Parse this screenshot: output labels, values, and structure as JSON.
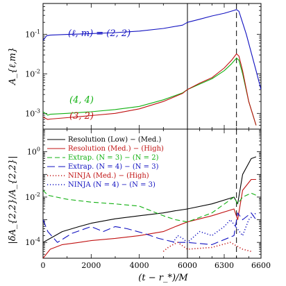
{
  "chart_data": [
    {
      "type": "line",
      "panel": "top",
      "ylabel": "A_{ℓ,m}",
      "y_scale": "log",
      "ylim": [
        0.0004,
        0.6
      ],
      "xlim": [
        0,
        6600
      ],
      "x_axis_break": {
        "from": 6000,
        "to": 6600,
        "labels": [
          "6000",
          "6300",
          "6600"
        ]
      },
      "y_tick_labels": [
        "10^-1",
        "10^-2",
        "10^-3"
      ],
      "grid": false,
      "vertical_lines": [
        {
          "x": 6000,
          "style": "solid"
        },
        {
          "x": 6400,
          "style": "dashed"
        }
      ],
      "series": [
        {
          "name": "(ℓ, m) = (2, 2)",
          "color": "#1010c0",
          "x": [
            0,
            150,
            300,
            1000,
            2000,
            3000,
            4000,
            5000,
            5800,
            6000,
            6100,
            6200,
            6300,
            6380,
            6400,
            6420,
            6480,
            6560,
            6600
          ],
          "values": [
            0.07,
            0.092,
            0.095,
            0.099,
            0.104,
            0.11,
            0.12,
            0.14,
            0.17,
            0.2,
            0.24,
            0.29,
            0.34,
            0.4,
            0.42,
            0.38,
            0.1,
            0.012,
            0.004
          ]
        },
        {
          "name": "(4, 4)",
          "color": "#10b010",
          "x": [
            0,
            200,
            300,
            1000,
            2000,
            3000,
            4000,
            5000,
            5800,
            6000,
            6100,
            6200,
            6300,
            6360,
            6400,
            6420,
            6450,
            6500,
            6560
          ],
          "values": [
            0.0011,
            0.0009,
            0.00095,
            0.001,
            0.0011,
            0.00125,
            0.0015,
            0.0022,
            0.0033,
            0.004,
            0.0055,
            0.0075,
            0.012,
            0.018,
            0.025,
            0.022,
            0.01,
            0.002,
            0.0005
          ]
        },
        {
          "name": "(3, 2)",
          "color": "#c01010",
          "x": [
            0,
            200,
            300,
            1000,
            2000,
            3000,
            4000,
            5000,
            5800,
            6000,
            6100,
            6200,
            6300,
            6360,
            6400,
            6420,
            6450,
            6500,
            6560
          ],
          "values": [
            0.0008,
            0.0007,
            0.00072,
            0.00078,
            0.00088,
            0.001,
            0.0013,
            0.002,
            0.0032,
            0.004,
            0.0058,
            0.008,
            0.014,
            0.022,
            0.032,
            0.028,
            0.012,
            0.002,
            0.0005
          ]
        }
      ]
    },
    {
      "type": "line",
      "panel": "bottom",
      "ylabel": "|δA_{2,2}/A_{2,2}|",
      "xlabel": "(t − r_*)/M",
      "y_scale": "log",
      "ylim": [
        2e-05,
        10
      ],
      "xlim": [
        0,
        6600
      ],
      "x_tick_labels": [
        "0",
        "2000",
        "4000",
        "6000",
        "6300",
        "6600"
      ],
      "x_axis_break": {
        "from": 6000,
        "to": 6600
      },
      "y_tick_labels": [
        "10^0",
        "10^-2",
        "10^-4"
      ],
      "grid": false,
      "legend": "top-left",
      "vertical_lines": [
        {
          "x": 6000,
          "style": "solid"
        },
        {
          "x": 6400,
          "style": "dashed"
        }
      ],
      "series": [
        {
          "name": "Resolution (Low) − (Med.)",
          "color": "#000000",
          "style": "solid",
          "x": [
            0,
            300,
            800,
            1500,
            2000,
            3000,
            4000,
            5000,
            5500,
            6000,
            6200,
            6380,
            6410,
            6450,
            6520,
            6560
          ],
          "values": [
            0.0001,
            0.00015,
            0.0003,
            0.0005,
            0.0007,
            0.0011,
            0.0015,
            0.002,
            0.0025,
            0.003,
            0.005,
            0.01,
            0.005,
            0.1,
            0.5,
            0.6
          ]
        },
        {
          "name": "Resolution (Med.) − (High)",
          "color": "#c01010",
          "style": "solid",
          "x": [
            0,
            300,
            800,
            1500,
            2000,
            3000,
            4000,
            5000,
            5500,
            6000,
            6200,
            6380,
            6410,
            6450,
            6520,
            6560
          ],
          "values": [
            2e-05,
            5e-05,
            8e-05,
            0.0001,
            0.00012,
            0.00015,
            0.0002,
            0.0003,
            0.0005,
            0.0008,
            0.0015,
            0.003,
            0.001,
            0.02,
            0.06,
            0.06
          ]
        },
        {
          "name": "Extrap. (N = 3) − (N = 2)",
          "color": "#10b010",
          "style": "dashed",
          "x": [
            0,
            200,
            1000,
            2000,
            3000,
            4000,
            5000,
            5500,
            6000,
            6200,
            6380,
            6410,
            6450,
            6520,
            6560
          ],
          "values": [
            0.02,
            0.012,
            0.008,
            0.006,
            0.005,
            0.004,
            0.0015,
            0.001,
            0.0008,
            0.002,
            0.01,
            0.005,
            0.01,
            0.015,
            0.012
          ]
        },
        {
          "name": "Extrap. (N = 4) − (N = 3)",
          "color": "#1010c0",
          "style": "longdash",
          "x": [
            0,
            200,
            600,
            1200,
            2000,
            2500,
            3000,
            3500,
            4200,
            4800,
            5500,
            6000,
            6200,
            6380,
            6410,
            6450,
            6520,
            6560
          ],
          "values": [
            0.001,
            0.0003,
            0.0001,
            0.00025,
            0.0005,
            0.0003,
            0.0005,
            0.0004,
            0.00025,
            0.00015,
            0.0001,
            0.0001,
            8e-05,
            0.0002,
            0.002,
            0.001,
            0.002,
            0.001
          ]
        },
        {
          "name": "NINJA (Med.) − (High)",
          "color": "#c01010",
          "style": "dotted",
          "x": [
            5000,
            5200,
            5400,
            5600,
            5800,
            6000,
            6200,
            6350,
            6450,
            6520
          ],
          "values": [
            4e-05,
            6e-05,
            8e-05,
            0.0001,
            7e-05,
            5e-05,
            6e-05,
            0.0001,
            5e-05,
            4e-05
          ]
        },
        {
          "name": "NINJA (N = 4) − (N = 3)",
          "color": "#1010c0",
          "style": "dotted",
          "x": [
            5400,
            5600,
            5800,
            6000,
            6100,
            6200,
            6300,
            6350,
            6450,
            6500,
            6560
          ],
          "values": [
            0.0001,
            0.0002,
            0.00015,
            0.0001,
            0.0003,
            0.0002,
            0.0005,
            0.001,
            0.0002,
            0.001,
            0.002
          ]
        }
      ]
    }
  ]
}
